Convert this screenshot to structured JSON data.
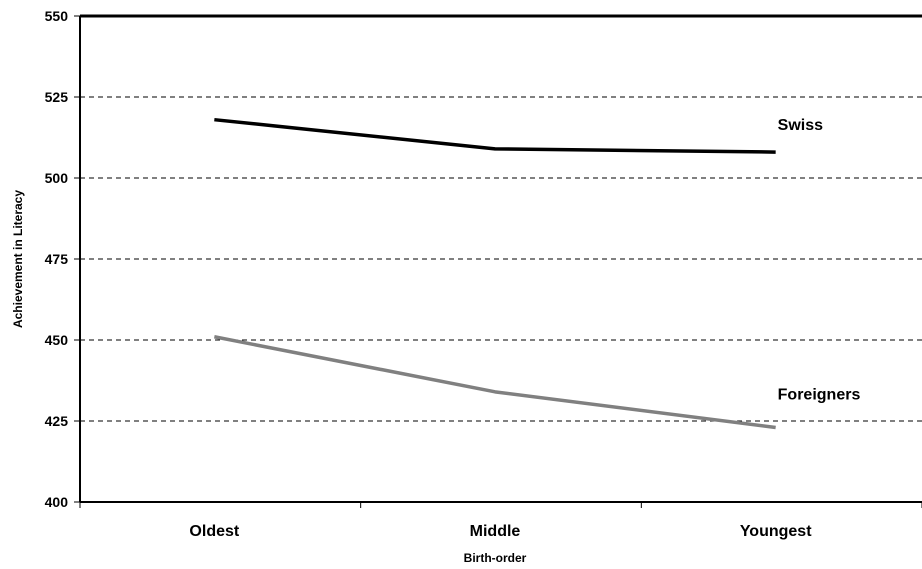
{
  "chart_data": {
    "type": "line",
    "title": "",
    "xlabel": "Birth-order",
    "ylabel": "Achievement in Literacy",
    "categories": [
      "Oldest",
      "Middle",
      "Youngest"
    ],
    "ylim": [
      400,
      550
    ],
    "yticks": [
      400,
      425,
      450,
      475,
      500,
      525,
      550
    ],
    "grid": "horizontal dashed",
    "legend": "direct labels at right end of lines",
    "series": [
      {
        "name": "Swiss",
        "values": [
          518,
          509,
          508
        ],
        "color": "#000000"
      },
      {
        "name": "Foreigners",
        "values": [
          451,
          434,
          423
        ],
        "color": "#808080"
      }
    ]
  }
}
